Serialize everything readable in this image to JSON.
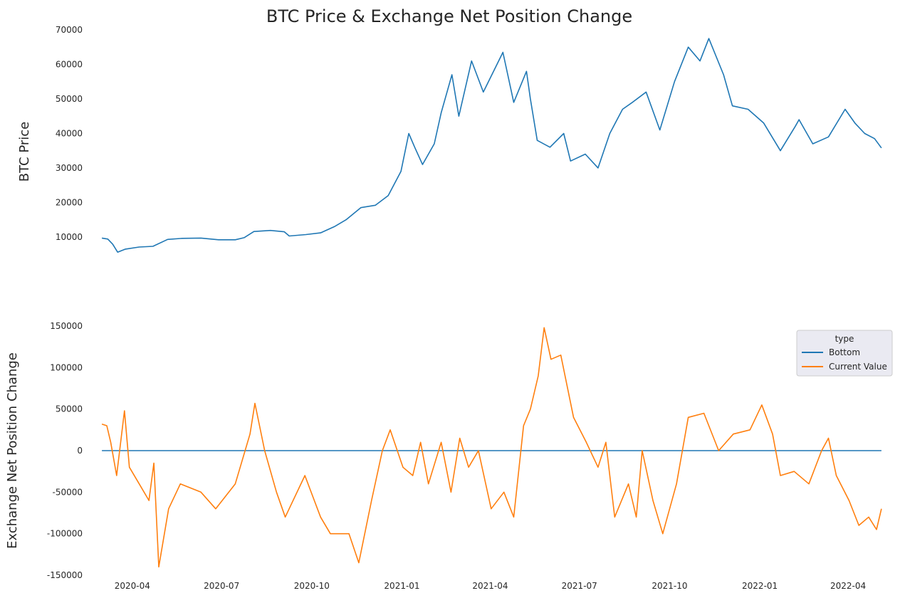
{
  "chart_data": [
    {
      "type": "line",
      "title": "BTC Price & Exchange Net Position Change",
      "ylabel": "BTC  Price",
      "xlabel": "",
      "ylim": [
        4000,
        70000
      ],
      "xlim": [
        "2020-02-19",
        "2022-05-16"
      ],
      "grid": false,
      "y_ticks": [
        10000,
        20000,
        30000,
        40000,
        50000,
        60000,
        70000
      ],
      "series": [
        {
          "color": "#1f77b4",
          "points": [
            [
              "2020-03-01",
              9700
            ],
            [
              "2020-03-07",
              9400
            ],
            [
              "2020-03-12",
              7900
            ],
            [
              "2020-03-17",
              5600
            ],
            [
              "2020-03-25",
              6500
            ],
            [
              "2020-04-08",
              7100
            ],
            [
              "2020-04-22",
              7300
            ],
            [
              "2020-05-07",
              9300
            ],
            [
              "2020-05-22",
              9600
            ],
            [
              "2020-06-10",
              9700
            ],
            [
              "2020-06-28",
              9200
            ],
            [
              "2020-07-15",
              9200
            ],
            [
              "2020-07-24",
              9800
            ],
            [
              "2020-08-03",
              11600
            ],
            [
              "2020-08-20",
              11900
            ],
            [
              "2020-09-03",
              11500
            ],
            [
              "2020-09-08",
              10300
            ],
            [
              "2020-09-25",
              10700
            ],
            [
              "2020-10-10",
              11200
            ],
            [
              "2020-10-24",
              13000
            ],
            [
              "2020-11-05",
              15000
            ],
            [
              "2020-11-20",
              18500
            ],
            [
              "2020-12-05",
              19200
            ],
            [
              "2020-12-18",
              22000
            ],
            [
              "2020-12-31",
              29000
            ],
            [
              "2021-01-08",
              40000
            ],
            [
              "2021-01-14",
              36000
            ],
            [
              "2021-01-22",
              31000
            ],
            [
              "2021-02-03",
              37000
            ],
            [
              "2021-02-10",
              46000
            ],
            [
              "2021-02-21",
              57000
            ],
            [
              "2021-02-28",
              45000
            ],
            [
              "2021-03-13",
              61000
            ],
            [
              "2021-03-25",
              52000
            ],
            [
              "2021-04-14",
              63500
            ],
            [
              "2021-04-25",
              49000
            ],
            [
              "2021-05-08",
              58000
            ],
            [
              "2021-05-12",
              50000
            ],
            [
              "2021-05-19",
              38000
            ],
            [
              "2021-06-01",
              36000
            ],
            [
              "2021-06-15",
              40000
            ],
            [
              "2021-06-22",
              32000
            ],
            [
              "2021-07-07",
              34000
            ],
            [
              "2021-07-20",
              30000
            ],
            [
              "2021-08-01",
              40000
            ],
            [
              "2021-08-14",
              47000
            ],
            [
              "2021-08-24",
              49000
            ],
            [
              "2021-09-07",
              52000
            ],
            [
              "2021-09-21",
              41000
            ],
            [
              "2021-10-06",
              55000
            ],
            [
              "2021-10-20",
              65000
            ],
            [
              "2021-11-01",
              61000
            ],
            [
              "2021-11-10",
              67500
            ],
            [
              "2021-11-25",
              57000
            ],
            [
              "2021-12-04",
              48000
            ],
            [
              "2021-12-20",
              47000
            ],
            [
              "2022-01-05",
              43000
            ],
            [
              "2022-01-22",
              35000
            ],
            [
              "2022-02-06",
              42000
            ],
            [
              "2022-02-10",
              44000
            ],
            [
              "2022-02-24",
              37000
            ],
            [
              "2022-03-12",
              39000
            ],
            [
              "2022-03-29",
              47000
            ],
            [
              "2022-04-08",
              43000
            ],
            [
              "2022-04-18",
              40000
            ],
            [
              "2022-04-28",
              38500
            ],
            [
              "2022-05-05",
              35800
            ]
          ]
        }
      ]
    },
    {
      "type": "line",
      "ylabel": "Exchange Net Position Change",
      "xlabel": "",
      "ylim": [
        -150000,
        150000
      ],
      "xlim": [
        "2020-02-19",
        "2022-05-16"
      ],
      "grid": false,
      "y_ticks": [
        -150000,
        -100000,
        -50000,
        0,
        50000,
        100000,
        150000
      ],
      "x_ticks": [
        "2020-04",
        "2020-07",
        "2020-10",
        "2021-01",
        "2021-04",
        "2021-07",
        "2021-10",
        "2022-01",
        "2022-04"
      ],
      "legend": {
        "title": "type",
        "position": "upper right"
      },
      "series": [
        {
          "name": "Bottom",
          "color": "#1f77b4",
          "points": [
            [
              "2020-03-01",
              0
            ],
            [
              "2022-05-05",
              0
            ]
          ]
        },
        {
          "name": "Current Value",
          "color": "#ff7f0e",
          "points": [
            [
              "2020-03-01",
              32000
            ],
            [
              "2020-03-06",
              30000
            ],
            [
              "2020-03-10",
              10000
            ],
            [
              "2020-03-16",
              -30000
            ],
            [
              "2020-03-24",
              48000
            ],
            [
              "2020-03-29",
              -20000
            ],
            [
              "2020-04-08",
              -40000
            ],
            [
              "2020-04-18",
              -60000
            ],
            [
              "2020-04-23",
              -15000
            ],
            [
              "2020-04-28",
              -140000
            ],
            [
              "2020-05-08",
              -70000
            ],
            [
              "2020-05-20",
              -40000
            ],
            [
              "2020-06-10",
              -50000
            ],
            [
              "2020-06-25",
              -70000
            ],
            [
              "2020-07-15",
              -40000
            ],
            [
              "2020-07-30",
              20000
            ],
            [
              "2020-08-04",
              57000
            ],
            [
              "2020-08-14",
              0
            ],
            [
              "2020-08-26",
              -50000
            ],
            [
              "2020-09-04",
              -80000
            ],
            [
              "2020-09-24",
              -30000
            ],
            [
              "2020-10-10",
              -80000
            ],
            [
              "2020-10-20",
              -100000
            ],
            [
              "2020-11-08",
              -100000
            ],
            [
              "2020-11-18",
              -135000
            ],
            [
              "2020-12-01",
              -60000
            ],
            [
              "2020-12-12",
              0
            ],
            [
              "2020-12-20",
              25000
            ],
            [
              "2021-01-02",
              -20000
            ],
            [
              "2021-01-12",
              -30000
            ],
            [
              "2021-01-20",
              10000
            ],
            [
              "2021-01-28",
              -40000
            ],
            [
              "2021-02-10",
              10000
            ],
            [
              "2021-02-20",
              -50000
            ],
            [
              "2021-03-01",
              15000
            ],
            [
              "2021-03-10",
              -20000
            ],
            [
              "2021-03-20",
              0
            ],
            [
              "2021-04-02",
              -70000
            ],
            [
              "2021-04-15",
              -50000
            ],
            [
              "2021-04-25",
              -80000
            ],
            [
              "2021-05-05",
              30000
            ],
            [
              "2021-05-12",
              50000
            ],
            [
              "2021-05-20",
              90000
            ],
            [
              "2021-05-26",
              148000
            ],
            [
              "2021-06-02",
              110000
            ],
            [
              "2021-06-12",
              115000
            ],
            [
              "2021-06-25",
              40000
            ],
            [
              "2021-07-08",
              10000
            ],
            [
              "2021-07-20",
              -20000
            ],
            [
              "2021-07-28",
              10000
            ],
            [
              "2021-08-06",
              -80000
            ],
            [
              "2021-08-20",
              -40000
            ],
            [
              "2021-08-28",
              -80000
            ],
            [
              "2021-09-03",
              0
            ],
            [
              "2021-09-14",
              -60000
            ],
            [
              "2021-09-24",
              -100000
            ],
            [
              "2021-10-08",
              -40000
            ],
            [
              "2021-10-20",
              40000
            ],
            [
              "2021-11-05",
              45000
            ],
            [
              "2021-11-20",
              0
            ],
            [
              "2021-12-05",
              20000
            ],
            [
              "2021-12-22",
              25000
            ],
            [
              "2022-01-03",
              55000
            ],
            [
              "2022-01-14",
              20000
            ],
            [
              "2022-01-22",
              -30000
            ],
            [
              "2022-02-05",
              -25000
            ],
            [
              "2022-02-20",
              -40000
            ],
            [
              "2022-03-05",
              0
            ],
            [
              "2022-03-12",
              15000
            ],
            [
              "2022-03-20",
              -30000
            ],
            [
              "2022-04-02",
              -60000
            ],
            [
              "2022-04-12",
              -90000
            ],
            [
              "2022-04-22",
              -80000
            ],
            [
              "2022-04-30",
              -95000
            ],
            [
              "2022-05-05",
              -70000
            ]
          ]
        }
      ]
    }
  ]
}
